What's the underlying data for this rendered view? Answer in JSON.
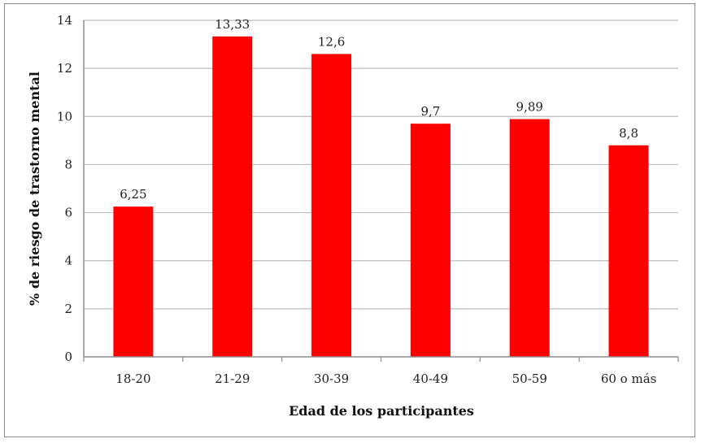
{
  "chart_data": {
    "type": "bar",
    "categories": [
      "18-20",
      "21-29",
      "30-39",
      "40-49",
      "50-59",
      "60 o más"
    ],
    "values": [
      6.25,
      13.33,
      12.6,
      9.7,
      9.89,
      8.8
    ],
    "data_labels": [
      "6,25",
      "13,33",
      "12,6",
      "9,7",
      "9,89",
      "8,8"
    ],
    "title": "",
    "xlabel": "Edad de los participantes",
    "ylabel": "% de riesgo de trastorno mental",
    "ylim": [
      0,
      14
    ],
    "yticks": [
      0,
      2,
      4,
      6,
      8,
      10,
      12,
      14
    ],
    "grid": true,
    "legend": "none",
    "bar_color": "#ff0000",
    "grid_color": "#bfbfbf"
  }
}
